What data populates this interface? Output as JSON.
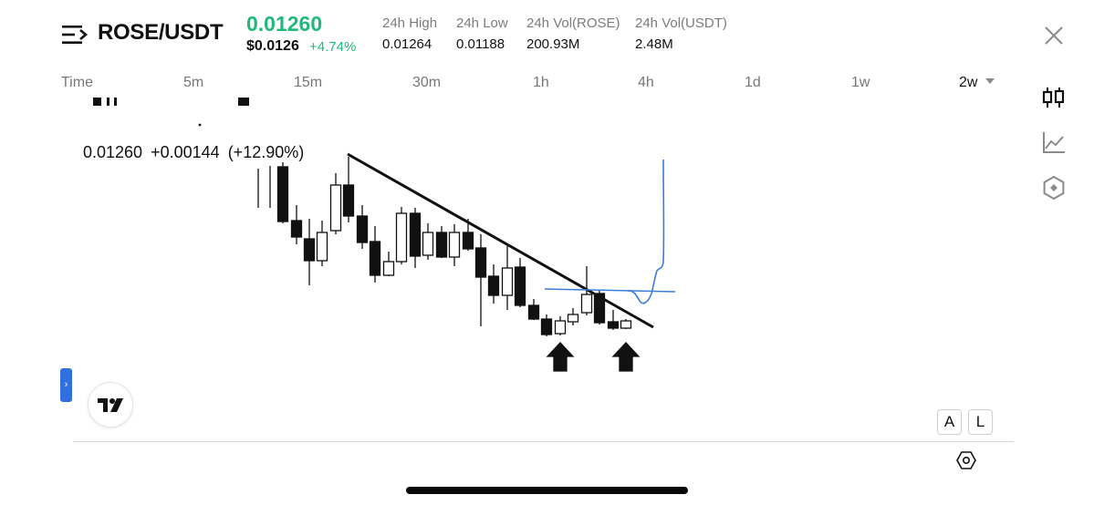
{
  "header": {
    "pair": "ROSE/USDT",
    "last_price": "0.01260",
    "usd_price": "$0.0126",
    "change_pct": "+4.74%"
  },
  "stats": [
    {
      "label": "24h High",
      "value": "0.01264"
    },
    {
      "label": "24h Low",
      "value": "0.01188"
    },
    {
      "label": "24h Vol(ROSE)",
      "value": "200.93M"
    },
    {
      "label": "24h Vol(USDT)",
      "value": "2.48M"
    }
  ],
  "timeframes": {
    "time_label": "Time",
    "items": [
      "5m",
      "15m",
      "30m",
      "1h",
      "4h",
      "1d",
      "1w"
    ],
    "active": "2w"
  },
  "chart": {
    "ohlc_price": "0.01260",
    "ohlc_change": "+0.00144",
    "ohlc_change_pct": "(+12.90%)"
  },
  "scale_buttons": {
    "auto": "A",
    "log": "L"
  },
  "expand_tab_glyph": "›",
  "icons": {
    "menu": "menu-icon",
    "close": "close-icon",
    "candles": "candlestick-icon",
    "line": "line-chart-icon",
    "indicators": "indicator-icon",
    "settings": "settings-icon",
    "logo": "tradingview-logo"
  },
  "colors": {
    "green": "#21b97a",
    "drawing_blue": "#3b7dd8"
  }
}
